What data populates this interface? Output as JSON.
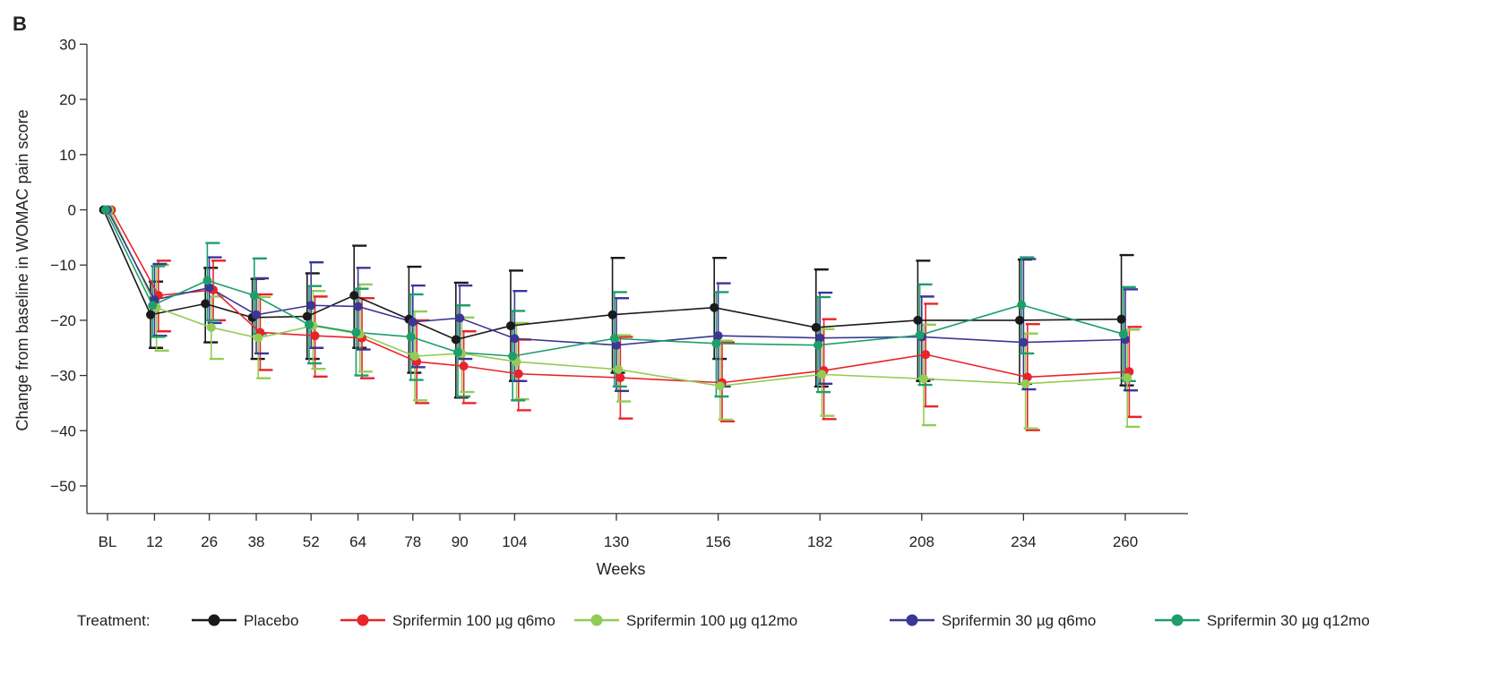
{
  "panel_label": "B",
  "chart_data": {
    "type": "line",
    "title": "",
    "xlabel": "Weeks",
    "ylabel": "Change from baseline in WOMAC pain score",
    "categories": [
      "BL",
      "12",
      "26",
      "38",
      "52",
      "64",
      "78",
      "90",
      "104",
      "130",
      "156",
      "182",
      "208",
      "234",
      "260"
    ],
    "x": [
      0,
      12,
      26,
      38,
      52,
      64,
      78,
      90,
      104,
      130,
      156,
      182,
      208,
      234,
      260
    ],
    "ylim": [
      -55,
      30
    ],
    "yticks": [
      30,
      20,
      10,
      0,
      -10,
      -20,
      -30,
      -40,
      -50
    ],
    "ytick_labels": [
      "30",
      "20",
      "10",
      "0",
      "−10",
      "−20",
      "−30",
      "−40",
      "−50"
    ],
    "grid": false,
    "legend": {
      "title": "Treatment:",
      "position": "bottom"
    },
    "series": [
      {
        "name": "Placebo",
        "color": "#1a1a1a",
        "offset": -2,
        "values": [
          0,
          -19,
          -17,
          -19.5,
          -19.3,
          -15.5,
          -19.8,
          -23.5,
          -21,
          -19,
          -17.7,
          -21.3,
          -20,
          -20,
          -19.8
        ],
        "err_low": [
          0,
          -25,
          -24,
          -27,
          -27,
          -25,
          -29.5,
          -34,
          -31,
          -29.5,
          -27,
          -32,
          -31,
          -31.5,
          -31.8
        ],
        "err_high": [
          0,
          -13,
          -10.5,
          -12.5,
          -11.5,
          -6.5,
          -10.3,
          -13.2,
          -11,
          -8.7,
          -8.7,
          -10.8,
          -9.2,
          -9,
          -8.2
        ]
      },
      {
        "name": "Sprifermin 100 µg q6mo",
        "color": "#e8242a",
        "offset": 2,
        "values": [
          0,
          -15.5,
          -14.5,
          -22.2,
          -22.8,
          -23.2,
          -27.5,
          -28.3,
          -29.7,
          -30.4,
          -31.3,
          -29.1,
          -26.2,
          -30.3,
          -29.3
        ],
        "err_low": [
          0,
          -22,
          -20,
          -29,
          -30.2,
          -30.5,
          -35,
          -35,
          -36.3,
          -37.8,
          -38.3,
          -37.9,
          -35.6,
          -39.9,
          -37.5
        ],
        "err_high": [
          0,
          -9.2,
          -9.2,
          -15.3,
          -15.7,
          -16,
          -20,
          -22,
          -23.5,
          -23,
          -24,
          -19.8,
          -17,
          -20.7,
          -21.2
        ]
      },
      {
        "name": "Sprifermin 100 µg q12mo",
        "color": "#93cc55",
        "offset": 1,
        "values": [
          0,
          -17.7,
          -21.3,
          -23.2,
          -21,
          -22.5,
          -26.5,
          -26,
          -27.5,
          -28.9,
          -31.9,
          -29.8,
          -30.6,
          -31.5,
          -30.4
        ],
        "err_low": [
          0,
          -25.5,
          -27,
          -30.5,
          -28.8,
          -29.3,
          -34.5,
          -33,
          -34.3,
          -34.7,
          -38,
          -37.3,
          -39,
          -39.6,
          -39.3
        ],
        "err_high": [
          0,
          -10,
          -15.7,
          -15.8,
          -14.7,
          -13.5,
          -18.4,
          -19.5,
          -20.5,
          -22.7,
          -23.7,
          -21.6,
          -20.8,
          -22.4,
          -21.7
        ]
      },
      {
        "name": "Sprifermin 30 µg q6mo",
        "color": "#3a3795",
        "offset": 0,
        "values": [
          0,
          -16.3,
          -14.1,
          -19,
          -17.3,
          -17.5,
          -20.3,
          -19.6,
          -23.3,
          -24.5,
          -22.8,
          -23.2,
          -23,
          -24,
          -23.5
        ],
        "err_low": [
          0,
          -22.8,
          -20.5,
          -26,
          -25,
          -25.3,
          -28.5,
          -27,
          -31,
          -32.8,
          -32,
          -31.5,
          -30.7,
          -32.5,
          -32.7
        ],
        "err_high": [
          0,
          -9.8,
          -8.6,
          -12.4,
          -9.5,
          -10.5,
          -13.7,
          -13.7,
          -14.7,
          -16,
          -13.3,
          -15,
          -15.7,
          -8.9,
          -14.4
        ]
      },
      {
        "name": "Sprifermin 30 µg q12mo",
        "color": "#1e9e6a",
        "offset": -1,
        "values": [
          0,
          -17.3,
          -12.8,
          -15.5,
          -20.8,
          -22.2,
          -23,
          -25.8,
          -26.5,
          -23.3,
          -24.2,
          -24.5,
          -22.7,
          -17.2,
          -22.5
        ],
        "err_low": [
          0,
          -23,
          -20,
          -22.5,
          -27.8,
          -30,
          -30.8,
          -33.8,
          -34.5,
          -32,
          -33.8,
          -33,
          -31.7,
          -26,
          -31
        ],
        "err_high": [
          0,
          -10.2,
          -6,
          -8.8,
          -13.8,
          -14.3,
          -15.3,
          -17.3,
          -18.3,
          -14.9,
          -14.9,
          -15.8,
          -13.5,
          -8.6,
          -14
        ]
      }
    ]
  }
}
